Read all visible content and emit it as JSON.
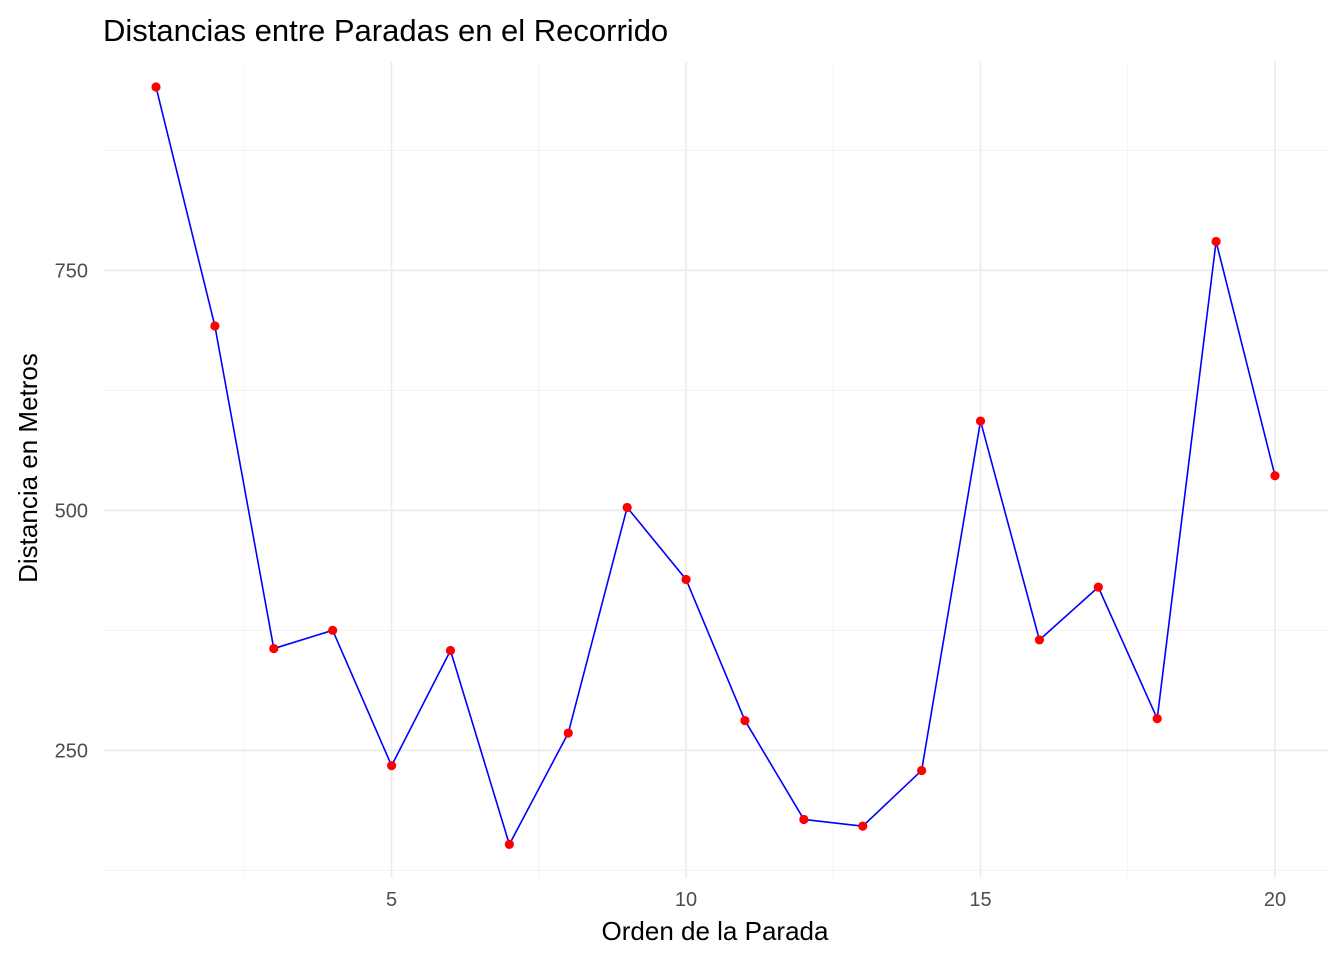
{
  "chart_data": {
    "type": "line",
    "title": "Distancias entre Paradas en el Recorrido",
    "xlabel": "Orden de la Parada",
    "ylabel": "Distancia en Metros",
    "xlim": [
      0.1,
      20.9
    ],
    "ylim": [
      117,
      967
    ],
    "x_ticks": [
      5,
      10,
      15,
      20
    ],
    "x_minor": [
      2.5,
      7.5,
      12.5,
      17.5
    ],
    "y_ticks": [
      250,
      500,
      750
    ],
    "y_minor": [
      125,
      375,
      625,
      875
    ],
    "grid": true,
    "line_color": "#0000ff",
    "point_color": "#ff0000",
    "x": [
      1,
      2,
      3,
      4,
      5,
      6,
      7,
      8,
      9,
      10,
      11,
      12,
      13,
      14,
      15,
      16,
      17,
      18,
      19,
      20
    ],
    "values": [
      941,
      692,
      356,
      375,
      234,
      354,
      152,
      268,
      503,
      428,
      281,
      178,
      171,
      229,
      593,
      365,
      420,
      283,
      780,
      536
    ]
  }
}
